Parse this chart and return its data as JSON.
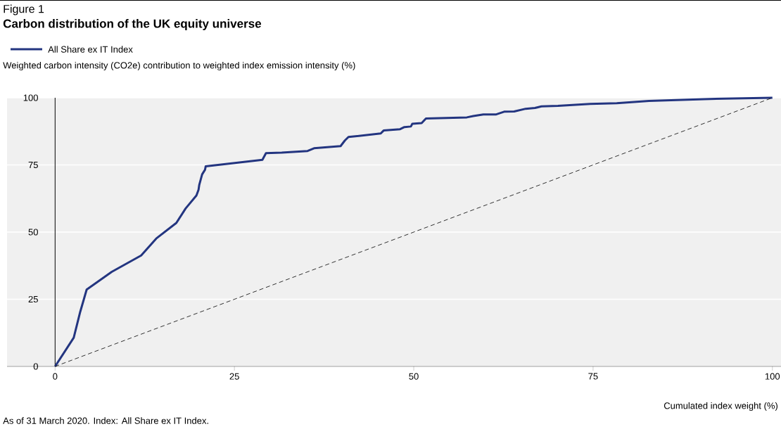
{
  "chart_data": {
    "type": "line",
    "subtitle": "Figure 1",
    "title": "Carbon distribution of the UK equity universe",
    "ylabel": "Weighted carbon intensity (CO2e) contribution to weighted index emission intensity (%)",
    "xlabel": "Cumulated index weight (%)",
    "annotations": [
      "As of 31 March 2020. Index: All Share ex IT Index."
    ],
    "series": [
      {
        "name": "All Share ex IT Index",
        "color": "#233580",
        "x": [
          0,
          2.6,
          3.5,
          4.4,
          7.9,
          12.0,
          14.1,
          16.9,
          18.2,
          19.7,
          20.0,
          20.1,
          20.5,
          20.9,
          21.0,
          28.9,
          29.4,
          31.6,
          35.2,
          36.1,
          39.8,
          40.4,
          40.9,
          45.4,
          45.8,
          48.1,
          48.7,
          49.6,
          49.8,
          51.1,
          51.7,
          57.4,
          58.3,
          59.7,
          61.5,
          62.6,
          64.0,
          65.6,
          66.9,
          67.8,
          70.1,
          74.6,
          78.3,
          82.8,
          90.5,
          100
        ],
        "values": [
          0,
          10.7,
          20.3,
          28.6,
          35.2,
          41.3,
          47.6,
          53.4,
          58.8,
          63.6,
          65.8,
          67.6,
          71.5,
          73.2,
          74.5,
          76.9,
          79.4,
          79.6,
          80.2,
          81.2,
          82.0,
          84.1,
          85.4,
          86.7,
          87.8,
          88.3,
          89.1,
          89.3,
          90.3,
          90.6,
          92.3,
          92.7,
          93.2,
          93.8,
          93.8,
          94.8,
          94.9,
          95.9,
          96.2,
          96.8,
          97.0,
          97.7,
          98.0,
          98.8,
          99.5,
          100
        ]
      },
      {
        "color": "#000000",
        "line_style": "dashed",
        "x": [
          0,
          100
        ],
        "values": [
          0,
          100
        ]
      }
    ],
    "xlim": [
      -6.7,
      101.2
    ],
    "ylim": [
      0,
      100
    ],
    "xticks": [
      0,
      25,
      50,
      75,
      100
    ],
    "yticks": [
      0,
      25,
      50,
      75,
      100
    ],
    "grid": "y",
    "legend": "top left",
    "marker": "none",
    "line_style": "solid"
  }
}
